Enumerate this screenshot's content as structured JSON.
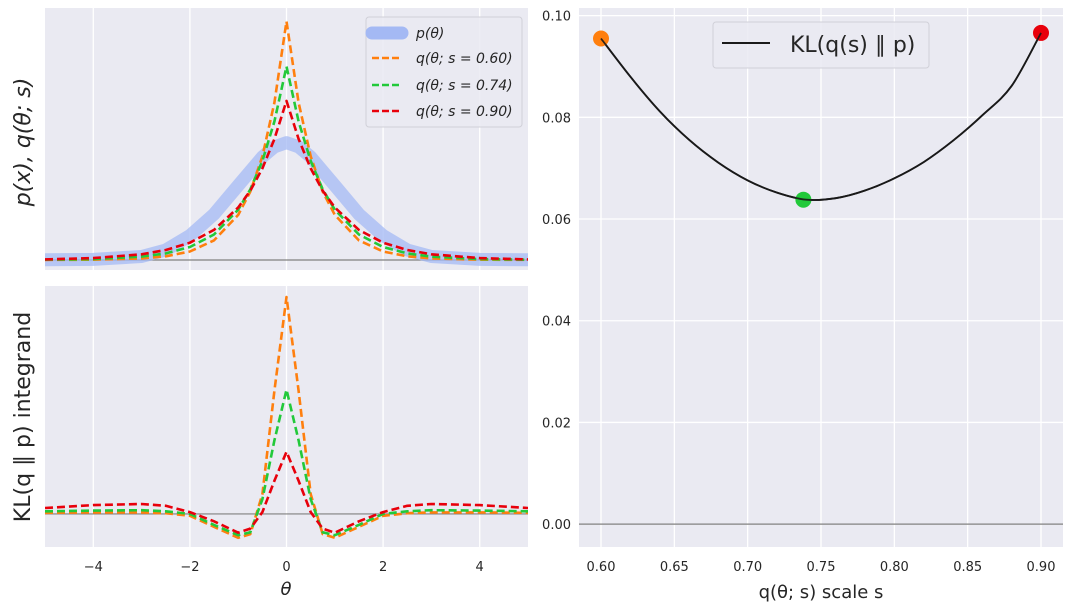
{
  "chart_data": [
    {
      "type": "line",
      "panel": "top-left",
      "title": "",
      "xlabel": "θ",
      "ylabel": "p(x), q(θ; s)",
      "xlim": [
        -5,
        5
      ],
      "ylim": [
        -0.035,
        0.88
      ],
      "xticks": [
        -4,
        -2,
        0,
        2,
        4
      ],
      "show_xtick_labels": false,
      "show_ytick_labels": false,
      "grid": true,
      "legend_position": "top-right",
      "x": [
        -5,
        -4,
        -3,
        -2.5,
        -2,
        -1.5,
        -1,
        -0.75,
        -0.5,
        -0.25,
        0,
        0.25,
        0.5,
        0.75,
        1,
        1.5,
        2,
        2.5,
        3,
        4,
        5
      ],
      "series": [
        {
          "name": "p(θ)",
          "legend": "p(θ)",
          "color": "#a4b9f4",
          "style": "thick",
          "values": [
            0.0005,
            0.002,
            0.012,
            0.035,
            0.085,
            0.16,
            0.26,
            0.31,
            0.36,
            0.395,
            0.41,
            0.395,
            0.36,
            0.31,
            0.26,
            0.16,
            0.085,
            0.035,
            0.012,
            0.002,
            0.0005
          ]
        },
        {
          "name": "q(θ; s=0.60)",
          "legend": "q(θ; s = 0.60)",
          "color": "#ff7f0e",
          "style": "dashed",
          "values": [
            0.0002,
            0.0011,
            0.0056,
            0.013,
            0.0297,
            0.0684,
            0.1574,
            0.2387,
            0.3622,
            0.5492,
            0.8333,
            0.5492,
            0.3622,
            0.2387,
            0.1574,
            0.0684,
            0.0297,
            0.013,
            0.0056,
            0.0011,
            0.0002
          ]
        },
        {
          "name": "q(θ; s=0.74)",
          "legend": "q(θ; s = 0.74)",
          "color": "#22c93a",
          "style": "dashed",
          "values": [
            0.0008,
            0.003,
            0.0118,
            0.023,
            0.0453,
            0.0891,
            0.1755,
            0.2464,
            0.3459,
            0.4836,
            0.6757,
            0.4836,
            0.3459,
            0.2464,
            0.1755,
            0.0891,
            0.0453,
            0.023,
            0.0118,
            0.003,
            0.0008
          ]
        },
        {
          "name": "q(θ; s=0.90)",
          "legend": "q(θ; s = 0.90)",
          "color": "#e8000b",
          "style": "dashed",
          "values": [
            0.0021,
            0.0065,
            0.0198,
            0.0347,
            0.0602,
            0.1049,
            0.1833,
            0.242,
            0.3197,
            0.4224,
            0.5556,
            0.4224,
            0.3197,
            0.242,
            0.1833,
            0.1049,
            0.0602,
            0.0347,
            0.0198,
            0.0065,
            0.0021
          ]
        }
      ]
    },
    {
      "type": "line",
      "panel": "bottom-left",
      "title": "",
      "xlabel": "θ",
      "ylabel": "KL(q ∥ p) integrand",
      "xlim": [
        -5,
        5
      ],
      "ylim": [
        -0.09,
        0.62
      ],
      "xticks": [
        -4,
        -2,
        0,
        2,
        4
      ],
      "xtick_labels": [
        "−4",
        "−2",
        "0",
        "2",
        "4"
      ],
      "show_ytick_labels": false,
      "grid": true,
      "x": [
        -5,
        -4,
        -3,
        -2.5,
        -2,
        -1.5,
        -1,
        -0.75,
        -0.5,
        -0.25,
        0,
        0.25,
        0.5,
        0.75,
        1,
        1.5,
        2,
        2.5,
        3,
        4,
        5
      ],
      "series": [
        {
          "name": "q(θ; s=0.60)",
          "color": "#ff7f0e",
          "values": [
            0.003,
            0.004,
            0.004,
            0.002,
            -0.005,
            -0.035,
            -0.065,
            -0.055,
            0.054,
            0.335,
            0.59,
            0.335,
            0.054,
            -0.055,
            -0.065,
            -0.035,
            -0.005,
            0.002,
            0.004,
            0.004,
            0.003
          ]
        },
        {
          "name": "q(θ; s=0.74)",
          "color": "#22c93a",
          "values": [
            0.007,
            0.009,
            0.01,
            0.007,
            0.0,
            -0.03,
            -0.058,
            -0.05,
            0.04,
            0.2,
            0.338,
            0.2,
            0.04,
            -0.05,
            -0.058,
            -0.03,
            0.0,
            0.007,
            0.01,
            0.009,
            0.007
          ]
        },
        {
          "name": "q(θ; s=0.90)",
          "color": "#e8000b",
          "values": [
            0.016,
            0.024,
            0.027,
            0.022,
            0.005,
            -0.02,
            -0.051,
            -0.04,
            0.005,
            0.09,
            0.169,
            0.09,
            0.005,
            -0.04,
            -0.051,
            -0.02,
            0.005,
            0.022,
            0.027,
            0.024,
            0.016
          ]
        }
      ]
    },
    {
      "type": "line",
      "panel": "right",
      "title": "",
      "xlabel": "q(θ; s) scale s",
      "ylabel": "",
      "xlim": [
        0.585,
        0.915
      ],
      "ylim": [
        -0.0045,
        0.1015
      ],
      "xticks": [
        0.6,
        0.65,
        0.7,
        0.75,
        0.8,
        0.85,
        0.9
      ],
      "xtick_labels": [
        "0.60",
        "0.65",
        "0.70",
        "0.75",
        "0.80",
        "0.85",
        "0.90"
      ],
      "yticks": [
        0.0,
        0.02,
        0.04,
        0.06,
        0.08,
        0.1
      ],
      "ytick_labels": [
        "0.00",
        "0.02",
        "0.04",
        "0.06",
        "0.08",
        "0.10"
      ],
      "grid": true,
      "legend_position": "top-center",
      "series": [
        {
          "name": "KL(q(s) ∥ p)",
          "legend": "KL(q(s) ∥ p)",
          "color": "#1a1a1a",
          "x": [
            0.6,
            0.62,
            0.64,
            0.66,
            0.68,
            0.7,
            0.72,
            0.74,
            0.76,
            0.78,
            0.8,
            0.82,
            0.84,
            0.86,
            0.88,
            0.9
          ],
          "values": [
            0.0955,
            0.088,
            0.0812,
            0.0756,
            0.0711,
            0.0676,
            0.0652,
            0.0638,
            0.0641,
            0.0656,
            0.068,
            0.0712,
            0.0754,
            0.0804,
            0.0862,
            0.0966
          ]
        }
      ],
      "markers": [
        {
          "s": 0.6,
          "kl": 0.0955,
          "color": "#ff7f0e"
        },
        {
          "s": 0.738,
          "kl": 0.0638,
          "color": "#22c93a"
        },
        {
          "s": 0.9,
          "kl": 0.0966,
          "color": "#e8000b"
        }
      ]
    }
  ]
}
